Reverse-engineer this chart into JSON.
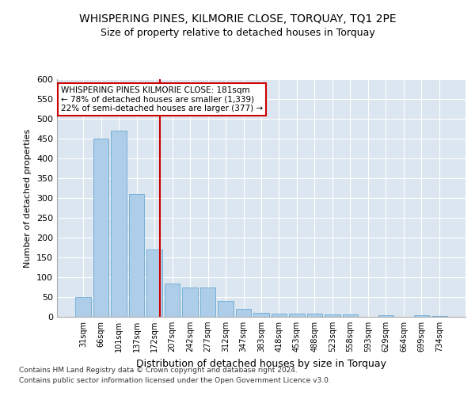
{
  "title": "WHISPERING PINES, KILMORIE CLOSE, TORQUAY, TQ1 2PE",
  "subtitle": "Size of property relative to detached houses in Torquay",
  "xlabel": "Distribution of detached houses by size in Torquay",
  "ylabel": "Number of detached properties",
  "footer_line1": "Contains HM Land Registry data © Crown copyright and database right 2024.",
  "footer_line2": "Contains public sector information licensed under the Open Government Licence v3.0.",
  "categories": [
    "31sqm",
    "66sqm",
    "101sqm",
    "137sqm",
    "172sqm",
    "207sqm",
    "242sqm",
    "277sqm",
    "312sqm",
    "347sqm",
    "383sqm",
    "418sqm",
    "453sqm",
    "488sqm",
    "523sqm",
    "558sqm",
    "593sqm",
    "629sqm",
    "664sqm",
    "699sqm",
    "734sqm"
  ],
  "values": [
    50,
    450,
    470,
    310,
    170,
    85,
    75,
    75,
    40,
    20,
    10,
    8,
    8,
    8,
    6,
    6,
    0,
    5,
    0,
    5,
    2
  ],
  "bar_color": "#aecde8",
  "bar_edge_color": "#6aaad4",
  "vline_x_index": 4.3,
  "vline_color": "#cc0000",
  "annotation_text": "WHISPERING PINES KILMORIE CLOSE: 181sqm\n← 78% of detached houses are smaller (1,339)\n22% of semi-detached houses are larger (377) →",
  "annotation_box_color": "#ffffff",
  "annotation_box_edge": "#cc0000",
  "ylim": [
    0,
    600
  ],
  "yticks": [
    0,
    50,
    100,
    150,
    200,
    250,
    300,
    350,
    400,
    450,
    500,
    550,
    600
  ],
  "bg_color": "#dce6f0",
  "plot_bg_color": "#dce6f0",
  "title_fontsize": 10,
  "subtitle_fontsize": 9,
  "footer_fontsize": 6.5
}
